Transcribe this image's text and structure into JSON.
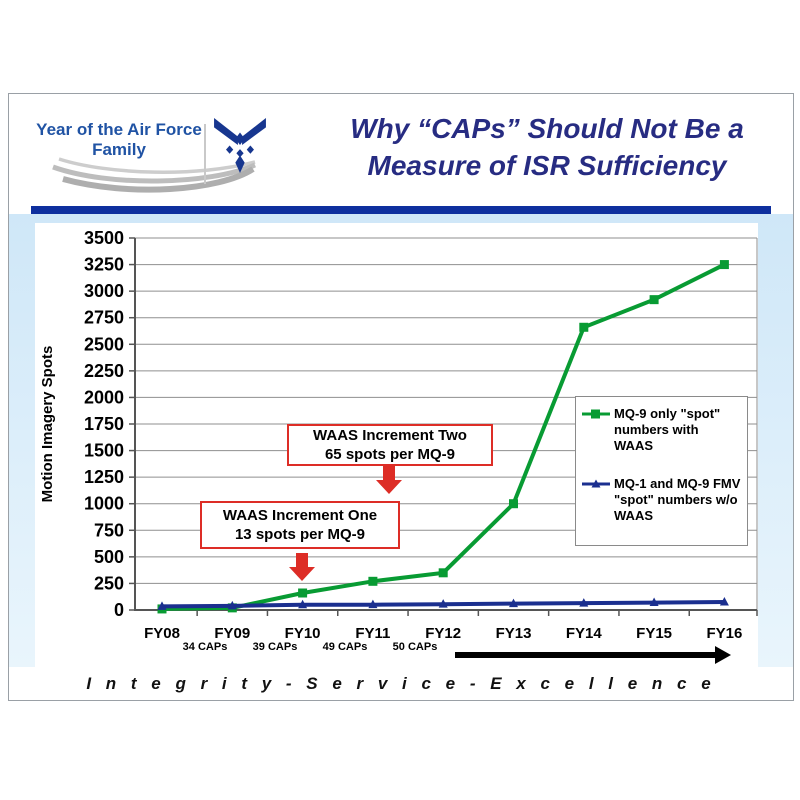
{
  "slide": {
    "header": {
      "logo_text_line1": "Year of the Air Force",
      "logo_text_line2": "Family",
      "title_line1": "Why “CAPs” Should Not Be a",
      "title_line2": "Measure of ISR Sufficiency"
    },
    "footer_motto": "I n t e g r i t y - S e r v i c e - E x c e l l e n c e"
  },
  "colors": {
    "title_navy": "#272c82",
    "header_bar_blue": "#0e2f9e",
    "slide_background_blue": "#cfe7f8",
    "af_logo_blue": "#17368f",
    "annotation_red": "#dd2d26",
    "green_series": "#089b33",
    "blue_series": "#1b2f8f"
  },
  "chart_data": {
    "type": "line",
    "title": "",
    "xlabel": "",
    "ylabel": "Motion Imagery Spots",
    "ylim": [
      0,
      3500
    ],
    "ytick_step": 250,
    "grid": true,
    "legend_position": "right",
    "categories": [
      "FY08",
      "FY09",
      "FY10",
      "FY11",
      "FY12",
      "FY13",
      "FY14",
      "FY15",
      "FY16"
    ],
    "series": [
      {
        "name": "MQ-9 only \"spot\" numbers with WAAS",
        "marker": "square",
        "color": "#089b33",
        "values": [
          10,
          20,
          160,
          270,
          350,
          1000,
          2660,
          2920,
          3250
        ]
      },
      {
        "name": "MQ-1 and MQ-9 FMV \"spot\" numbers w/o WAAS",
        "marker": "triangle",
        "color": "#1b2f8f",
        "values": [
          34,
          39,
          49,
          50,
          55,
          60,
          65,
          70,
          75
        ]
      }
    ],
    "cap_labels": [
      "34 CAPs",
      "39 CAPs",
      "49 CAPs",
      "50 CAPs"
    ],
    "annotations": [
      {
        "line1": "WAAS Increment One",
        "line2": "13 spots per MQ-9"
      },
      {
        "line1": "WAAS Increment Two",
        "line2": "65 spots per MQ-9"
      }
    ]
  }
}
